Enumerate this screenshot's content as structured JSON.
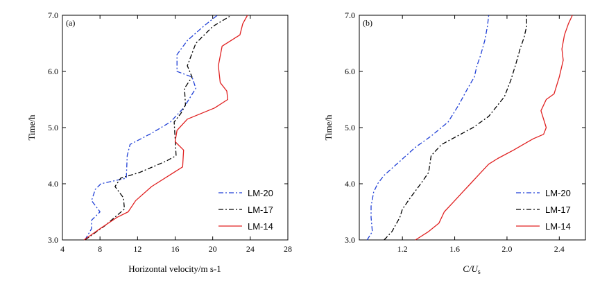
{
  "chart_data": [
    {
      "type": "line",
      "panel_label": "(a)",
      "xlabel": "Horizontal velocity/m s-1",
      "ylabel": "Time/h",
      "xlim": [
        4,
        28
      ],
      "ylim": [
        3.0,
        7.0
      ],
      "xticks": [
        "4",
        "8",
        "12",
        "16",
        "20",
        "24",
        "28"
      ],
      "yticks": [
        "3.0",
        "4.0",
        "5.0",
        "6.0",
        "7.0"
      ],
      "legend_position": "bottom-right",
      "series": [
        {
          "name": "LM-20",
          "color": "#1f3fd6",
          "style": "dash-dot",
          "x": [
            6.4,
            7.1,
            7.1,
            8.0,
            7.1,
            7.5,
            8.1,
            10.8,
            10.9,
            11.2,
            13.5,
            15.5,
            16.9,
            18.2,
            17.8,
            16.2,
            16.2,
            17.3,
            19.0,
            20.5
          ],
          "y": [
            3.0,
            3.2,
            3.35,
            3.5,
            3.7,
            3.9,
            4.0,
            4.1,
            4.5,
            4.7,
            4.9,
            5.1,
            5.35,
            5.7,
            5.9,
            6.0,
            6.3,
            6.55,
            6.8,
            7.0
          ]
        },
        {
          "name": "LM-17",
          "color": "#000000",
          "style": "dash-dot",
          "x": [
            6.4,
            8.5,
            10.6,
            10.5,
            9.6,
            10.2,
            12.2,
            15.0,
            16.1,
            16.0,
            15.9,
            16.6,
            17.1,
            17.0,
            17.8,
            17.3,
            18.2,
            20.0,
            22.0
          ],
          "y": [
            3.0,
            3.25,
            3.55,
            3.75,
            3.95,
            4.1,
            4.2,
            4.4,
            4.5,
            4.8,
            5.1,
            5.25,
            5.4,
            5.7,
            5.9,
            6.1,
            6.5,
            6.8,
            7.0
          ]
        },
        {
          "name": "LM-14",
          "color": "#e02020",
          "style": "solid",
          "x": [
            6.3,
            8.0,
            9.8,
            11.0,
            11.8,
            13.5,
            16.8,
            16.9,
            16.0,
            16.2,
            17.3,
            20.2,
            21.6,
            21.5,
            20.8,
            20.6,
            21.0,
            22.9,
            23.2,
            23.7
          ],
          "y": [
            3.0,
            3.2,
            3.4,
            3.5,
            3.7,
            3.95,
            4.3,
            4.6,
            4.75,
            4.95,
            5.15,
            5.35,
            5.5,
            5.65,
            5.8,
            6.1,
            6.45,
            6.65,
            6.85,
            7.0
          ]
        }
      ]
    },
    {
      "type": "line",
      "panel_label": "(b)",
      "xlabel_main": "C/U",
      "xlabel_sub": "s",
      "ylabel": "Time/h",
      "xlim": [
        0.87,
        2.6
      ],
      "ylim": [
        3.0,
        7.0
      ],
      "xticks": [
        "1.2",
        "1.6",
        "2.0",
        "2.4"
      ],
      "xtick_values": [
        1.2,
        1.6,
        2.0,
        2.4
      ],
      "yticks": [
        "3.0",
        "4.0",
        "5.0",
        "6.0",
        "7.0"
      ],
      "legend_position": "bottom-right",
      "series": [
        {
          "name": "LM-20",
          "color": "#1f3fd6",
          "style": "dash-dot",
          "x": [
            0.93,
            0.97,
            0.96,
            0.96,
            0.98,
            1.01,
            1.06,
            1.18,
            1.3,
            1.42,
            1.55,
            1.63,
            1.7,
            1.75,
            1.77,
            1.8,
            1.83,
            1.85,
            1.86
          ],
          "y": [
            3.0,
            3.15,
            3.4,
            3.6,
            3.85,
            4.0,
            4.15,
            4.4,
            4.65,
            4.85,
            5.1,
            5.4,
            5.7,
            5.9,
            6.1,
            6.3,
            6.55,
            6.8,
            7.0
          ]
        },
        {
          "name": "LM-17",
          "color": "#000000",
          "style": "dash-dot",
          "x": [
            1.06,
            1.12,
            1.18,
            1.2,
            1.26,
            1.34,
            1.4,
            1.42,
            1.5,
            1.62,
            1.74,
            1.86,
            1.98,
            2.03,
            2.07,
            2.1,
            2.13,
            2.15,
            2.15
          ],
          "y": [
            3.0,
            3.15,
            3.4,
            3.55,
            3.75,
            4.0,
            4.2,
            4.5,
            4.7,
            4.85,
            5.0,
            5.2,
            5.55,
            5.85,
            6.15,
            6.4,
            6.6,
            6.8,
            7.0
          ]
        },
        {
          "name": "LM-14",
          "color": "#e02020",
          "style": "solid",
          "x": [
            1.3,
            1.4,
            1.48,
            1.52,
            1.58,
            1.66,
            1.72,
            1.8,
            1.86,
            1.93,
            2.05,
            2.2,
            2.28,
            2.3,
            2.26,
            2.3,
            2.36,
            2.4,
            2.43,
            2.42,
            2.44,
            2.47,
            2.5
          ],
          "y": [
            3.0,
            3.15,
            3.3,
            3.5,
            3.65,
            3.85,
            4.0,
            4.2,
            4.35,
            4.45,
            4.6,
            4.8,
            4.88,
            5.0,
            5.3,
            5.5,
            5.6,
            5.9,
            6.2,
            6.4,
            6.65,
            6.85,
            7.0
          ]
        }
      ]
    }
  ]
}
